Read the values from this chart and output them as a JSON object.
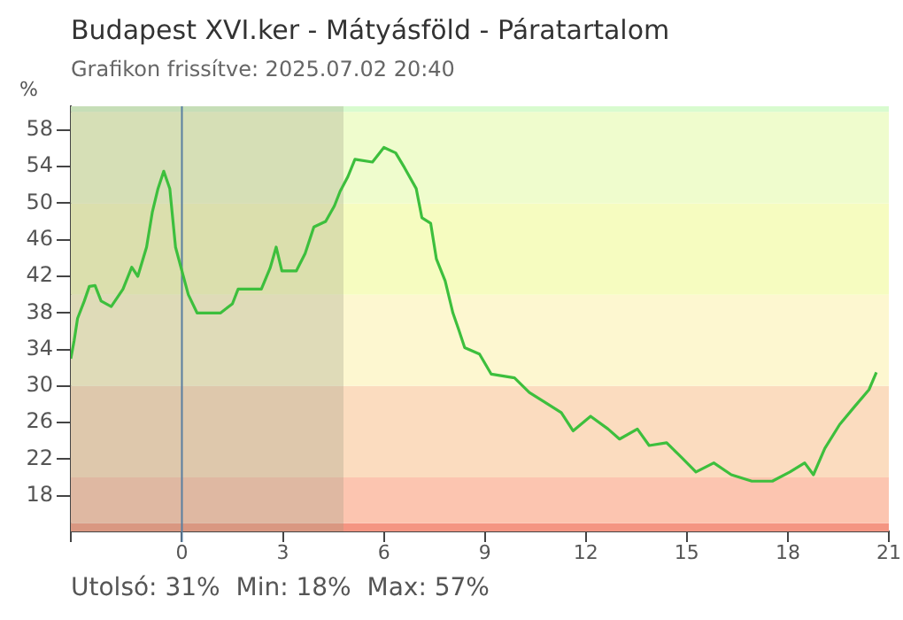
{
  "chart_data": {
    "type": "line",
    "title": "Budapest XVI.ker - Mátyásföld - Páratartalom",
    "subtitle": "Grafikon frissítve: 2025.07.02 20:40",
    "ylabel": "%",
    "annotations": [
      "Utolsó: 31%  Min: 18%  Max: 57%"
    ],
    "series": [
      {
        "color": "#3dbf3d",
        "x": [
          -3.3,
          -3.2,
          -3.1,
          -2.9,
          -2.75,
          -2.58,
          -2.4,
          -2.1,
          -1.75,
          -1.49,
          -1.31,
          -1.05,
          -0.88,
          -0.71,
          -0.54,
          -0.36,
          -0.19,
          0,
          0.19,
          0.45,
          1.15,
          1.5,
          1.67,
          2.36,
          2.62,
          2.8,
          2.97,
          3.4,
          3.66,
          3.92,
          4.27,
          4.53,
          4.7,
          4.93,
          5.14,
          5.66,
          6.0,
          6.35,
          6.61,
          6.96,
          7.13,
          7.39,
          7.56,
          7.82,
          8.05,
          8.23,
          8.4,
          8.84,
          9.19,
          9.88,
          10.32,
          10.75,
          11.27,
          11.62,
          12.14,
          12.66,
          13.0,
          13.53,
          13.88,
          14.4,
          14.84,
          15.27,
          15.8,
          16.32,
          16.93,
          17.54,
          18.06,
          18.5,
          18.76,
          19.1,
          19.54,
          19.97,
          20.41,
          20.63
        ],
        "values": [
          33,
          35,
          37.4,
          39.3,
          40.9,
          41,
          39.3,
          38.7,
          40.6,
          43,
          42,
          45.2,
          49,
          51.6,
          53.5,
          51.6,
          45.2,
          42.6,
          40,
          38,
          38,
          39,
          40.6,
          40.6,
          42.9,
          45.2,
          42.6,
          42.6,
          44.5,
          47.4,
          48,
          49.7,
          51.3,
          52.9,
          54.8,
          54.5,
          56.1,
          55.5,
          53.9,
          51.6,
          48.4,
          47.8,
          43.9,
          41.5,
          38,
          36.1,
          34.2,
          33.5,
          31.3,
          30.9,
          29.3,
          28.3,
          27.1,
          25.1,
          26.7,
          25.3,
          24.2,
          25.3,
          23.5,
          23.8,
          22.2,
          20.6,
          21.6,
          20.3,
          19.6,
          19.6,
          20.6,
          21.6,
          20.3,
          23.2,
          25.8,
          27.7,
          29.6,
          31.5
        ]
      }
    ],
    "xlim": [
      -3.3,
      21
    ],
    "xticks": [
      {
        "value": -3.3,
        "label": null
      },
      0,
      3,
      6,
      9,
      12,
      15,
      18,
      21
    ],
    "ylim": [
      14.1,
      60.6
    ],
    "yticks": [
      18,
      22,
      26,
      30,
      34,
      38,
      42,
      46,
      50,
      54,
      58
    ],
    "bands": [
      {
        "axis": "y",
        "from": 14.1,
        "to": 15,
        "color": "#f49582"
      },
      {
        "axis": "y",
        "from": 15,
        "to": 20,
        "color": "#fcc5b0"
      },
      {
        "axis": "y",
        "from": 20,
        "to": 30,
        "color": "#fbdcbf"
      },
      {
        "axis": "y",
        "from": 30,
        "to": 40,
        "color": "#fdf7d0"
      },
      {
        "axis": "y",
        "from": 40,
        "to": 50,
        "color": "#f6fcc0"
      },
      {
        "axis": "y",
        "from": 50,
        "to": 60,
        "color": "#effccd"
      },
      {
        "axis": "y",
        "from": 60,
        "to": 60.6,
        "color": "#d8fbcf"
      },
      {
        "axis": "x",
        "from": -3.3,
        "to": 4.8,
        "color": "#9a9a80"
      }
    ],
    "ref_lines": [
      {
        "axis": "x",
        "value": 0,
        "color": "#5a7fa0"
      }
    ],
    "grid": false,
    "legend": false,
    "marker": "none",
    "line_style": "solid"
  }
}
